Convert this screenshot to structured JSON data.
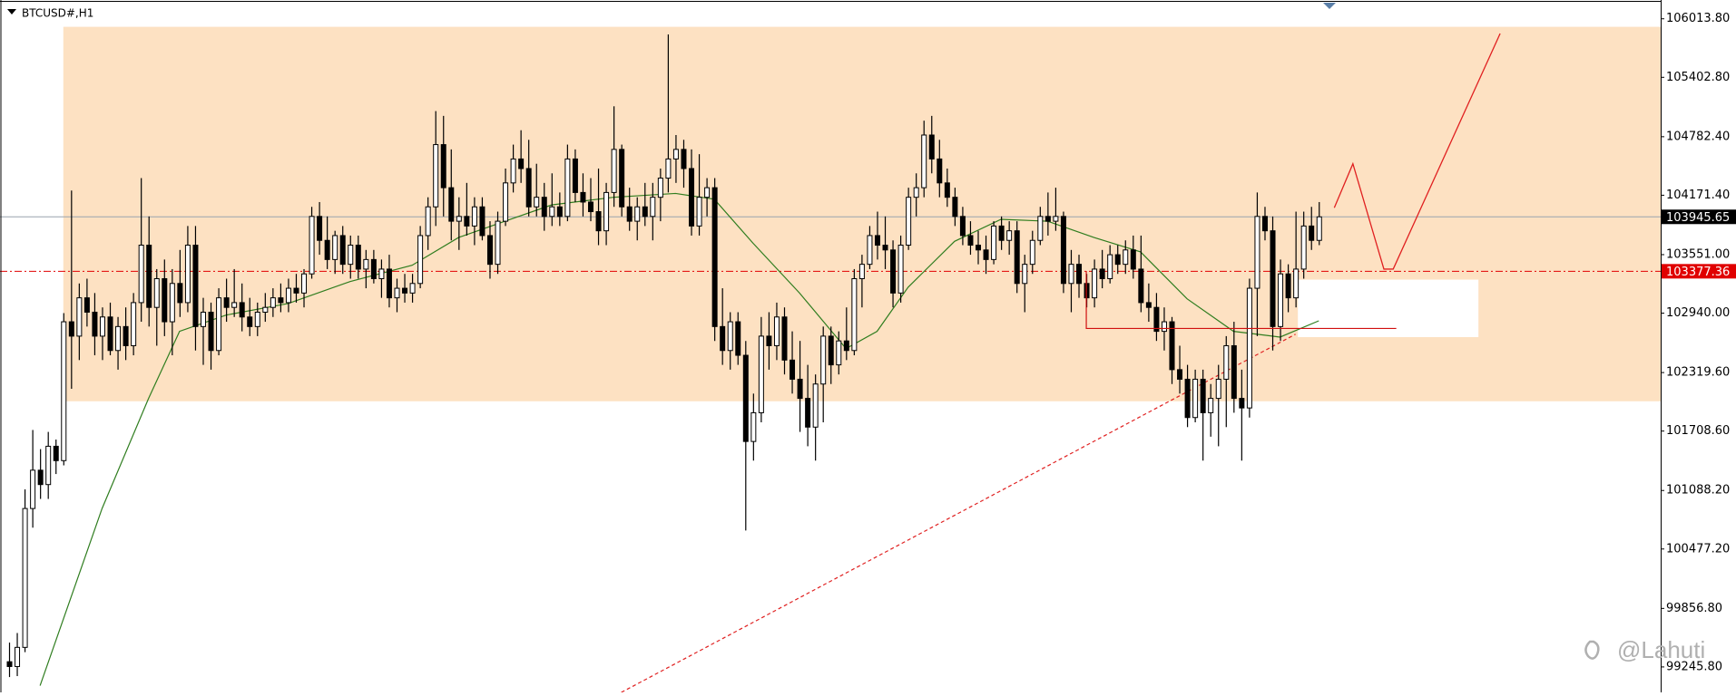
{
  "chart_data": {
    "type": "candlestick",
    "title": "BTCUSD#,H1",
    "up_color": "#ffffff",
    "down_color": "#000000",
    "ylim": [
      98980,
      106210
    ],
    "yticks": [
      {
        "value": 106013.8,
        "label": "106013.80"
      },
      {
        "value": 105402.8,
        "label": "105402.80"
      },
      {
        "value": 104782.4,
        "label": "104782.40"
      },
      {
        "value": 104171.4,
        "label": "104171.40"
      },
      {
        "value": 103551,
        "label": "103551.00"
      },
      {
        "value": 102940,
        "label": "102940.00"
      },
      {
        "value": 102319.6,
        "label": "102319.60"
      },
      {
        "value": 101708.6,
        "label": "101708.60"
      },
      {
        "value": 101088.2,
        "label": "101088.20"
      },
      {
        "value": 100477.2,
        "label": "100477.20"
      },
      {
        "value": 99856.8,
        "label": "99856.80"
      },
      {
        "value": 99245.8,
        "label": "99245.80"
      }
    ],
    "ohlc": [
      [
        99300,
        99500,
        99140,
        99250
      ],
      [
        99250,
        99600,
        99150,
        99450
      ],
      [
        99450,
        101100,
        99400,
        100900
      ],
      [
        100900,
        101720,
        100700,
        101300
      ],
      [
        101300,
        101520,
        101000,
        101150
      ],
      [
        101150,
        101700,
        101000,
        101550
      ],
      [
        101550,
        101620,
        101260,
        101400
      ],
      [
        101400,
        102940,
        101350,
        102850
      ],
      [
        102850,
        104220,
        102150,
        102700
      ],
      [
        102700,
        103250,
        102450,
        103100
      ],
      [
        103100,
        103300,
        102800,
        102950
      ],
      [
        102950,
        103150,
        102500,
        102700
      ],
      [
        102700,
        103000,
        102450,
        102900
      ],
      [
        102900,
        103050,
        102500,
        102550
      ],
      [
        102550,
        102900,
        102350,
        102800
      ],
      [
        102800,
        103000,
        102450,
        102600
      ],
      [
        102600,
        103150,
        102500,
        103050
      ],
      [
        103050,
        104350,
        102850,
        103650
      ],
      [
        103650,
        103950,
        102800,
        103000
      ],
      [
        103000,
        103400,
        102600,
        103300
      ],
      [
        103300,
        103500,
        102700,
        102850
      ],
      [
        102850,
        103400,
        102500,
        103250
      ],
      [
        103250,
        103600,
        102900,
        103050
      ],
      [
        103050,
        103850,
        102950,
        103650
      ],
      [
        103650,
        103850,
        102550,
        102800
      ],
      [
        102800,
        103100,
        102400,
        102950
      ],
      [
        102950,
        103050,
        102350,
        102550
      ],
      [
        102550,
        103200,
        102500,
        103100
      ],
      [
        103100,
        103300,
        102850,
        103000
      ],
      [
        103000,
        103400,
        102900,
        103050
      ],
      [
        103050,
        103250,
        102750,
        102900
      ],
      [
        102900,
        103100,
        102700,
        102800
      ],
      [
        102800,
        103050,
        102700,
        102950
      ],
      [
        102950,
        103150,
        102850,
        103000
      ],
      [
        103000,
        103200,
        102900,
        103100
      ],
      [
        103100,
        103250,
        102950,
        103050
      ],
      [
        103050,
        103300,
        102950,
        103200
      ],
      [
        103200,
        103350,
        103050,
        103150
      ],
      [
        103150,
        103400,
        103000,
        103350
      ],
      [
        103350,
        104050,
        103300,
        103950
      ],
      [
        103950,
        104100,
        103550,
        103700
      ],
      [
        103700,
        103950,
        103400,
        103500
      ],
      [
        103500,
        103800,
        103350,
        103750
      ],
      [
        103750,
        103850,
        103350,
        103450
      ],
      [
        103450,
        103750,
        103300,
        103650
      ],
      [
        103650,
        103750,
        103300,
        103400
      ],
      [
        103400,
        103600,
        103200,
        103500
      ],
      [
        103500,
        103600,
        103250,
        103300
      ],
      [
        103300,
        103500,
        103100,
        103400
      ],
      [
        103400,
        103550,
        103000,
        103100
      ],
      [
        103100,
        103300,
        102950,
        103200
      ],
      [
        103200,
        103350,
        103050,
        103150
      ],
      [
        103150,
        103350,
        103050,
        103250
      ],
      [
        103250,
        103850,
        103200,
        103750
      ],
      [
        103750,
        104150,
        103600,
        104050
      ],
      [
        104050,
        105050,
        103850,
        104700
      ],
      [
        104700,
        105000,
        103950,
        104250
      ],
      [
        104250,
        104650,
        103700,
        103900
      ],
      [
        103900,
        104150,
        103600,
        103950
      ],
      [
        103950,
        104300,
        103750,
        103850
      ],
      [
        103850,
        104150,
        103650,
        104050
      ],
      [
        104050,
        104150,
        103700,
        103750
      ],
      [
        103750,
        103900,
        103300,
        103450
      ],
      [
        103450,
        104000,
        103350,
        103900
      ],
      [
        103900,
        104450,
        103850,
        104300
      ],
      [
        104300,
        104700,
        104200,
        104550
      ],
      [
        104550,
        104850,
        104300,
        104450
      ],
      [
        104450,
        104750,
        103950,
        104050
      ],
      [
        104050,
        104500,
        103950,
        104150
      ],
      [
        104150,
        104300,
        103800,
        103950
      ],
      [
        103950,
        104400,
        103850,
        104050
      ],
      [
        104050,
        104200,
        103850,
        103950
      ],
      [
        103950,
        104700,
        103900,
        104550
      ],
      [
        104550,
        104650,
        104100,
        104200
      ],
      [
        104200,
        104400,
        103950,
        104100
      ],
      [
        104100,
        104350,
        103900,
        104000
      ],
      [
        104000,
        104450,
        103650,
        103800
      ],
      [
        103800,
        104300,
        103650,
        104200
      ],
      [
        104200,
        105100,
        104050,
        104650
      ],
      [
        104650,
        104700,
        103950,
        104050
      ],
      [
        104050,
        104250,
        103800,
        103900
      ],
      [
        103900,
        104150,
        103700,
        104050
      ],
      [
        104050,
        104300,
        103850,
        103950
      ],
      [
        103950,
        104300,
        103700,
        104150
      ],
      [
        104150,
        104450,
        103900,
        104350
      ],
      [
        104350,
        105850,
        104200,
        104550
      ],
      [
        104550,
        104800,
        104300,
        104650
      ],
      [
        104650,
        104750,
        104250,
        104450
      ],
      [
        104450,
        104650,
        103750,
        103850
      ],
      [
        103850,
        104600,
        103750,
        104150
      ],
      [
        104150,
        104350,
        103950,
        104250
      ],
      [
        104250,
        104350,
        102650,
        102800
      ],
      [
        102800,
        103200,
        102400,
        102550
      ],
      [
        102550,
        102950,
        102350,
        102850
      ],
      [
        102850,
        102950,
        102400,
        102500
      ],
      [
        102500,
        102650,
        100670,
        101600
      ],
      [
        101600,
        102100,
        101400,
        101900
      ],
      [
        101900,
        102900,
        101800,
        102700
      ],
      [
        102700,
        102950,
        102350,
        102600
      ],
      [
        102600,
        103050,
        102450,
        102900
      ],
      [
        102900,
        103000,
        102300,
        102450
      ],
      [
        102450,
        102750,
        102100,
        102250
      ],
      [
        102250,
        102650,
        101700,
        102050
      ],
      [
        102050,
        102400,
        101550,
        101750
      ],
      [
        101750,
        102300,
        101400,
        102200
      ],
      [
        102200,
        102800,
        101800,
        102700
      ],
      [
        102700,
        102800,
        102200,
        102400
      ],
      [
        102400,
        102750,
        102300,
        102650
      ],
      [
        102650,
        103000,
        102450,
        102550
      ],
      [
        102550,
        103400,
        102500,
        103300
      ],
      [
        103300,
        103550,
        103000,
        103450
      ],
      [
        103450,
        103850,
        103400,
        103750
      ],
      [
        103750,
        104000,
        103500,
        103650
      ],
      [
        103650,
        103950,
        103400,
        103600
      ],
      [
        103600,
        103700,
        103000,
        103150
      ],
      [
        103150,
        103750,
        103050,
        103650
      ],
      [
        103650,
        104250,
        103600,
        104150
      ],
      [
        104150,
        104400,
        103950,
        104250
      ],
      [
        104250,
        104950,
        104150,
        104800
      ],
      [
        104800,
        105000,
        104400,
        104550
      ],
      [
        104550,
        104750,
        104150,
        104300
      ],
      [
        104300,
        104450,
        104050,
        104150
      ],
      [
        104150,
        104250,
        103850,
        103950
      ],
      [
        103950,
        104050,
        103650,
        103750
      ],
      [
        103750,
        103900,
        103550,
        103650
      ],
      [
        103650,
        103800,
        103450,
        103600
      ],
      [
        103600,
        103750,
        103350,
        103500
      ],
      [
        103500,
        103900,
        103450,
        103850
      ],
      [
        103850,
        103950,
        103600,
        103700
      ],
      [
        103700,
        103900,
        103550,
        103800
      ],
      [
        103800,
        103900,
        103150,
        103250
      ],
      [
        103250,
        103550,
        102950,
        103450
      ],
      [
        103450,
        103800,
        103350,
        103700
      ],
      [
        103700,
        104050,
        103650,
        103950
      ],
      [
        103950,
        104200,
        103750,
        103900
      ],
      [
        103900,
        104250,
        103800,
        103950
      ],
      [
        103950,
        104000,
        103150,
        103250
      ],
      [
        103250,
        103600,
        102950,
        103450
      ],
      [
        103450,
        103550,
        103100,
        103250
      ],
      [
        103250,
        103350,
        103000,
        103100
      ],
      [
        103100,
        103500,
        103000,
        103400
      ],
      [
        103400,
        103600,
        103200,
        103300
      ],
      [
        103300,
        103650,
        103250,
        103550
      ],
      [
        103550,
        103650,
        103350,
        103450
      ],
      [
        103450,
        103700,
        103350,
        103600
      ],
      [
        103600,
        103750,
        103300,
        103400
      ],
      [
        103400,
        103750,
        102950,
        103050
      ],
      [
        103050,
        103250,
        102850,
        103000
      ],
      [
        103000,
        103150,
        102650,
        102750
      ],
      [
        102750,
        103000,
        102550,
        102850
      ],
      [
        102850,
        102900,
        102200,
        102350
      ],
      [
        102350,
        102600,
        102100,
        102250
      ],
      [
        102250,
        102400,
        101750,
        101850
      ],
      [
        101850,
        102350,
        101800,
        102250
      ],
      [
        102250,
        102350,
        101400,
        101900
      ],
      [
        101900,
        102200,
        101650,
        102050
      ],
      [
        102050,
        102400,
        101550,
        102250
      ],
      [
        102250,
        102700,
        101750,
        102600
      ],
      [
        102600,
        102850,
        101900,
        102050
      ],
      [
        102050,
        102350,
        101400,
        101950
      ],
      [
        101950,
        103300,
        101850,
        103200
      ],
      [
        103200,
        104200,
        102700,
        103950
      ],
      [
        103950,
        104050,
        103700,
        103800
      ],
      [
        103800,
        103950,
        102550,
        102800
      ],
      [
        102800,
        103500,
        102650,
        103350
      ],
      [
        103350,
        103450,
        102950,
        103100
      ],
      [
        103100,
        104000,
        103000,
        103400
      ],
      [
        103400,
        104000,
        103300,
        103850
      ],
      [
        103850,
        104050,
        103600,
        103700
      ],
      [
        103700,
        104100,
        103650,
        103945.65
      ]
    ],
    "ma": {
      "color": "#2f7d1f",
      "x": [
        4,
        12,
        18,
        22,
        28,
        36,
        44,
        52,
        58,
        64,
        70,
        78,
        86,
        91,
        96,
        102,
        108,
        112,
        116,
        122,
        128,
        134,
        140,
        146,
        152,
        158,
        164,
        169
      ],
      "values": [
        99050,
        100900,
        102050,
        102750,
        102920,
        103040,
        103270,
        103440,
        103730,
        103900,
        104070,
        104150,
        104190,
        104130,
        103670,
        103150,
        102570,
        102750,
        103210,
        103690,
        103920,
        103900,
        103730,
        103580,
        103090,
        102750,
        102690,
        102860
      ]
    },
    "zone": {
      "top": 105930,
      "bottom": 102020,
      "x": 7,
      "color": "#fde1c2"
    },
    "levels": [
      {
        "value": 103945.65,
        "color": "#98a4ae",
        "box": "#000000"
      },
      {
        "value": 103377.36,
        "color": "#e00000",
        "box": "#e00000"
      }
    ],
    "trend": {
      "x": [
        79,
        166
      ],
      "values": [
        98980,
        102720
      ],
      "color": "#e02020"
    },
    "support": {
      "x": [
        139,
        139,
        179
      ],
      "values": [
        103380,
        102780,
        102780
      ],
      "color": "#d01010"
    },
    "box": {
      "x": [
        166.3,
        189.6
      ],
      "values": [
        103290,
        102690
      ],
      "color": "#ffffff"
    },
    "projection": {
      "x": [
        171,
        173.4,
        177.4,
        178.6,
        192.4
      ],
      "values": [
        104040,
        104500,
        103400,
        103400,
        105860
      ],
      "color": "#e02020"
    }
  },
  "watermark": "@Lahuti"
}
